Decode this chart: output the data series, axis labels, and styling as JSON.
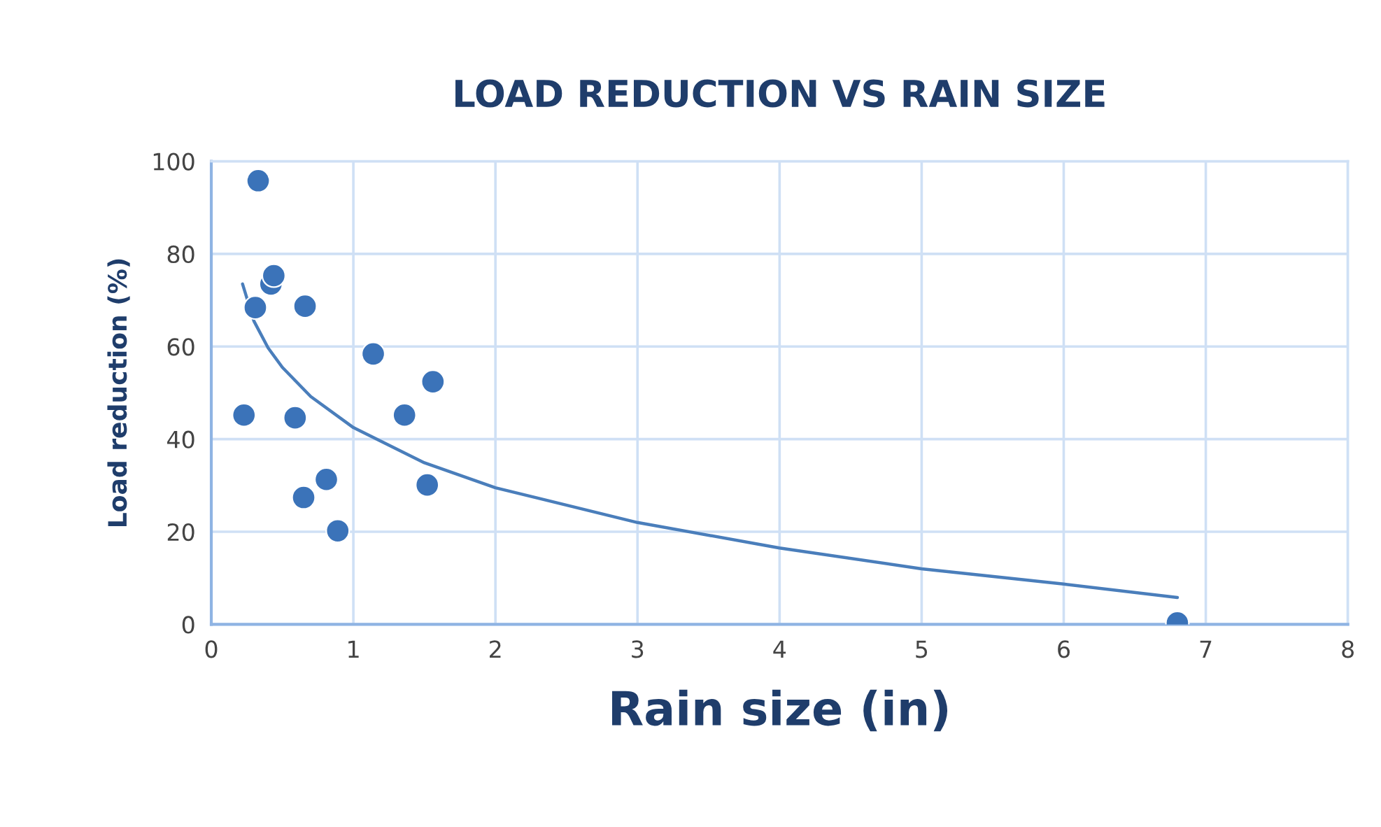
{
  "chart_data": {
    "type": "scatter",
    "title": "LOAD REDUCTION VS RAIN SIZE",
    "xlabel": "Rain size (in)",
    "ylabel": "Load reduction (%)",
    "xlim": [
      0,
      8
    ],
    "xticks": [
      0,
      1,
      2,
      3,
      4,
      5,
      6,
      7,
      8
    ],
    "ylim": [
      0,
      100
    ],
    "yticks": [
      0,
      20,
      40,
      60,
      80,
      100
    ],
    "grid": true,
    "marker": "circle",
    "series": [
      {
        "color": "#3b73b9",
        "x": [
          0.33,
          0.42,
          0.44,
          0.31,
          0.66,
          0.23,
          0.59,
          1.14,
          1.56,
          1.36,
          0.65,
          0.81,
          1.52,
          0.89,
          6.8
        ],
        "values": [
          95.8,
          73.5,
          75.3,
          68.4,
          68.7,
          45.2,
          44.6,
          58.4,
          52.4,
          45.2,
          27.4,
          31.3,
          30.1,
          20.2,
          0.3
        ]
      },
      {
        "type": "line",
        "color": "#4a7ebb",
        "marker": "none",
        "line_style": "solid",
        "x": [
          0.22,
          0.3,
          0.4,
          0.5,
          0.7,
          1,
          1.5,
          2,
          3,
          4,
          5,
          6,
          6.8
        ],
        "values": [
          73.5,
          65.5,
          59.7,
          55.5,
          49.2,
          42.5,
          34.9,
          29.5,
          22,
          16.5,
          12,
          8.7,
          5.8
        ]
      }
    ]
  }
}
